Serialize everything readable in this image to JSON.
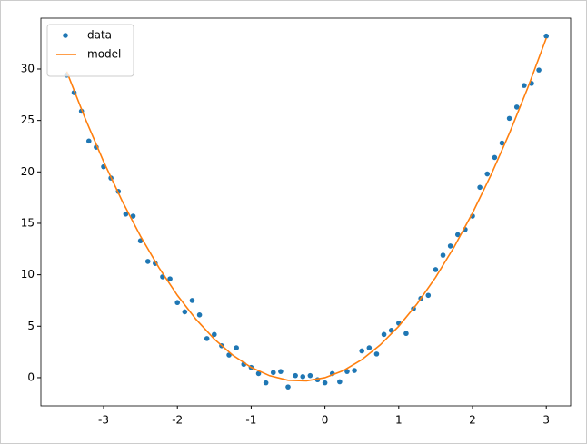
{
  "chart_data": {
    "type": "line",
    "xlim": [
      -3.85,
      3.33
    ],
    "ylim": [
      -2.74,
      34.94
    ],
    "xticks": [
      -3,
      -2,
      -1,
      0,
      1,
      2,
      3
    ],
    "yticks": [
      0,
      5,
      10,
      15,
      20,
      25,
      30
    ],
    "legend": "upper left",
    "series": [
      {
        "name": "data",
        "type": "scatter",
        "color": "#1f77b4",
        "x": [
          -3.5,
          -3.4,
          -3.3,
          -3.2,
          -3.1,
          -3.0,
          -2.9,
          -2.8,
          -2.7,
          -2.6,
          -2.5,
          -2.4,
          -2.3,
          -2.2,
          -2.1,
          -2.0,
          -1.9,
          -1.8,
          -1.7,
          -1.6,
          -1.5,
          -1.4,
          -1.3,
          -1.2,
          -1.1,
          -1.0,
          -0.9,
          -0.8,
          -0.7,
          -0.6,
          -0.5,
          -0.4,
          -0.3,
          -0.2,
          -0.1,
          0.0,
          0.1,
          0.2,
          0.3,
          0.4,
          0.5,
          0.6,
          0.7,
          0.8,
          0.9,
          1.0,
          1.1,
          1.2,
          1.3,
          1.4,
          1.5,
          1.6,
          1.7,
          1.8,
          1.9,
          2.0,
          2.1,
          2.2,
          2.3,
          2.4,
          2.5,
          2.6,
          2.7,
          2.8,
          2.9,
          3.0
        ],
        "values": [
          29.4,
          27.7,
          25.9,
          23.0,
          22.4,
          20.5,
          19.4,
          18.1,
          15.9,
          15.7,
          13.3,
          11.3,
          11.1,
          9.8,
          9.6,
          7.3,
          6.4,
          7.5,
          6.1,
          3.8,
          4.2,
          3.1,
          2.2,
          2.9,
          1.3,
          1.0,
          0.4,
          -0.5,
          0.5,
          0.6,
          -0.9,
          0.2,
          0.1,
          0.2,
          -0.2,
          -0.5,
          0.4,
          -0.4,
          0.6,
          0.7,
          2.6,
          2.9,
          2.3,
          4.2,
          4.6,
          5.3,
          4.3,
          6.7,
          7.7,
          8.0,
          10.5,
          11.9,
          12.8,
          13.9,
          14.4,
          15.7,
          18.5,
          19.8,
          21.4,
          22.8,
          25.2,
          26.3,
          28.4,
          28.6,
          29.9,
          33.2
        ]
      },
      {
        "name": "model",
        "type": "line",
        "color": "#ff7f0e",
        "x": [
          -3.5,
          -3.25,
          -3.0,
          -2.75,
          -2.5,
          -2.25,
          -2.0,
          -1.75,
          -1.5,
          -1.25,
          -1.0,
          -0.75,
          -0.5,
          -0.25,
          0.0,
          0.25,
          0.5,
          0.75,
          1.0,
          1.25,
          1.5,
          1.75,
          2.0,
          2.25,
          2.5,
          2.75,
          3.0
        ],
        "values": [
          29.75,
          25.19,
          21,
          17.19,
          13.75,
          10.69,
          8,
          5.69,
          3.75,
          2.19,
          1,
          0.19,
          -0.25,
          -0.31,
          0,
          0.69,
          1.75,
          3.19,
          5,
          7.19,
          9.75,
          12.69,
          16,
          19.69,
          23.75,
          28.19,
          33
        ]
      }
    ]
  }
}
